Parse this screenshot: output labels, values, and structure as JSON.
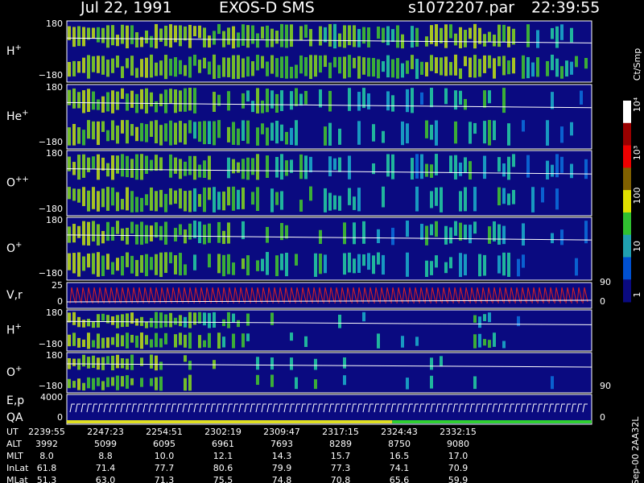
{
  "header": {
    "date": "Jul 22, 1991",
    "instrument": "EXOS-D SMS",
    "file": "s1072207.par",
    "time": "22:39:55"
  },
  "panels": [
    {
      "label": "H",
      "charge": "+",
      "top": "180",
      "bottom": "−180"
    },
    {
      "label": "He",
      "charge": "+",
      "top": "180",
      "bottom": "−180"
    },
    {
      "label": "O",
      "charge": "++",
      "top": "180",
      "bottom": "−180"
    },
    {
      "label": "O",
      "charge": "+",
      "top": "180",
      "bottom": "−180"
    },
    {
      "label": "V,r",
      "top": "25",
      "bottom": "0",
      "right_top": "90",
      "right_bottom": "0"
    },
    {
      "label": "H",
      "charge": "+",
      "top": "180",
      "bottom": "−180"
    },
    {
      "label": "O",
      "charge": "+",
      "top": "180",
      "bottom": "−180",
      "right_bottom": "90"
    },
    {
      "label": "E,p",
      "label2": "QA",
      "top": "4000",
      "bottom": "0",
      "right_bottom": "0"
    }
  ],
  "colorbar": {
    "unit": "Ct/Smp",
    "labels": [
      "10⁴",
      "10³",
      "100",
      "10",
      "1"
    ]
  },
  "table": {
    "row_labels": [
      "UT",
      "ALT",
      "MLT",
      "InLat",
      "MLat"
    ],
    "rows": [
      [
        "2239:55",
        "2247:23",
        "2254:51",
        "2302:19",
        "2309:47",
        "2317:15",
        "2324:43",
        "2332:15"
      ],
      [
        "3992",
        "5099",
        "6095",
        "6961",
        "7693",
        "8289",
        "8750",
        "9080"
      ],
      [
        "8.0",
        "8.8",
        "10.0",
        "12.1",
        "14.3",
        "15.7",
        "16.5",
        "17.0"
      ],
      [
        "61.8",
        "71.4",
        "77.7",
        "80.6",
        "79.9",
        "77.3",
        "74.1",
        "70.9"
      ],
      [
        "51.3",
        "63.0",
        "71.3",
        "75.5",
        "74.8",
        "70.8",
        "65.6",
        "59.9"
      ]
    ]
  },
  "footer": "Sep-00  2AA32L"
}
